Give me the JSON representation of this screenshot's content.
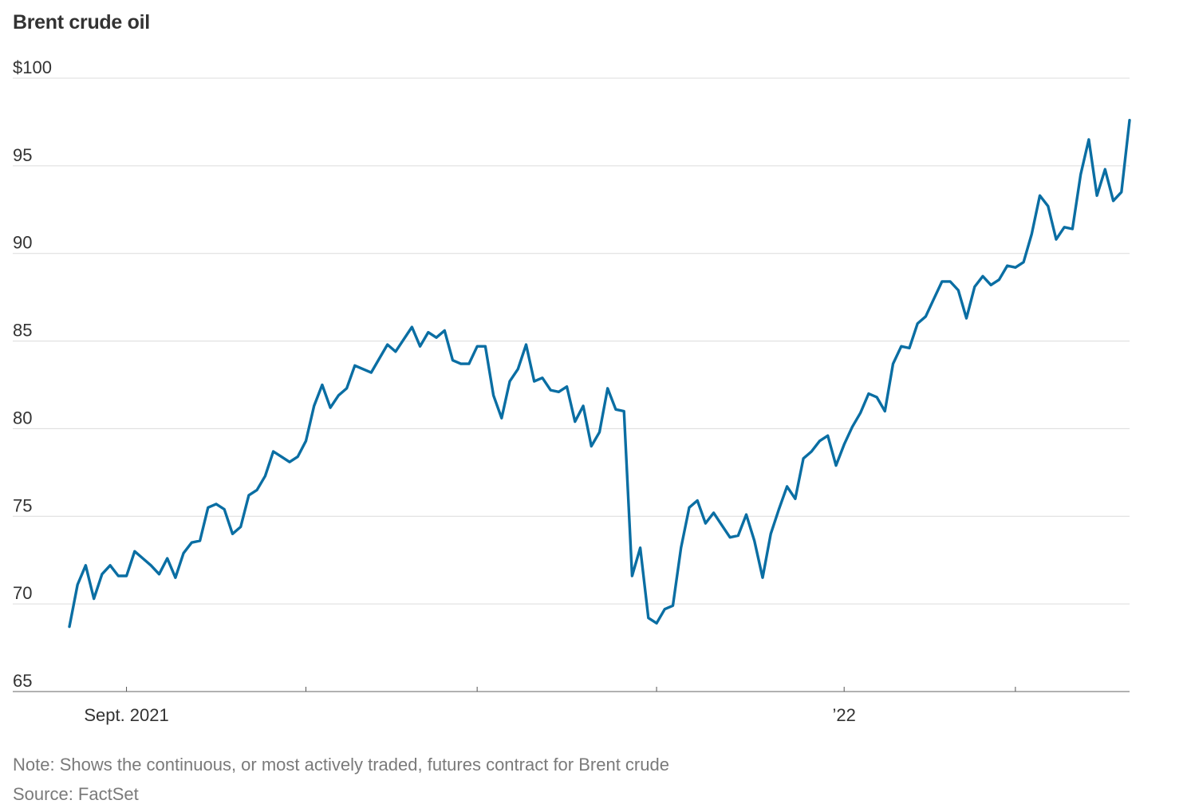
{
  "title": "Brent crude oil",
  "note": "Note: Shows the continuous, or most actively traded, futures contract for Brent crude",
  "source": "Source: FactSet",
  "colors": {
    "series": "#0a6ea3",
    "grid": "#dcdcdc"
  },
  "chart_data": {
    "type": "line",
    "title": "Brent crude oil",
    "xlabel": "",
    "ylabel": "",
    "ylim": [
      65,
      100
    ],
    "grid": true,
    "legend": "none",
    "y_ticks": [
      {
        "value": 100,
        "label": "$100"
      },
      {
        "value": 95,
        "label": "95"
      },
      {
        "value": 90,
        "label": "90"
      },
      {
        "value": 85,
        "label": "85"
      },
      {
        "value": 80,
        "label": "80"
      },
      {
        "value": 75,
        "label": "75"
      },
      {
        "value": 70,
        "label": "70"
      },
      {
        "value": 65,
        "label": "65"
      }
    ],
    "x_ticks": [
      {
        "index": 7,
        "label": "Sept. 2021"
      },
      {
        "index": 29,
        "label": ""
      },
      {
        "index": 50,
        "label": ""
      },
      {
        "index": 72,
        "label": ""
      },
      {
        "index": 95,
        "label": "’22"
      },
      {
        "index": 116,
        "label": ""
      }
    ],
    "series": [
      {
        "values": [
          68.7,
          71.1,
          72.2,
          70.3,
          71.7,
          72.2,
          71.6,
          71.6,
          73.0,
          72.6,
          72.2,
          71.7,
          72.6,
          71.5,
          72.9,
          73.5,
          73.6,
          75.5,
          75.7,
          75.4,
          74.0,
          74.4,
          76.2,
          76.5,
          77.3,
          78.7,
          78.4,
          78.1,
          78.4,
          79.3,
          81.3,
          82.5,
          81.2,
          81.9,
          82.3,
          83.6,
          83.4,
          83.2,
          84.0,
          84.8,
          84.4,
          85.1,
          85.8,
          84.7,
          85.5,
          85.2,
          85.6,
          83.9,
          83.7,
          83.7,
          84.7,
          84.7,
          81.9,
          80.6,
          82.7,
          83.4,
          84.8,
          82.7,
          82.9,
          82.2,
          82.1,
          82.4,
          80.4,
          81.3,
          79.0,
          79.8,
          82.3,
          81.1,
          81.0,
          71.6,
          73.2,
          69.2,
          68.9,
          69.7,
          69.9,
          73.2,
          75.5,
          75.9,
          74.6,
          75.2,
          74.5,
          73.8,
          73.9,
          75.1,
          73.6,
          71.5,
          74.0,
          75.4,
          76.7,
          76.0,
          78.3,
          78.7,
          79.3,
          79.6,
          77.9,
          79.1,
          80.1,
          80.9,
          82.0,
          81.8,
          81.0,
          83.7,
          84.7,
          84.6,
          86.0,
          86.4,
          87.4,
          88.4,
          88.4,
          87.9,
          86.3,
          88.1,
          88.7,
          88.2,
          88.5,
          89.3,
          89.2,
          89.5,
          91.1,
          93.3,
          92.7,
          90.8,
          91.5,
          91.4,
          94.5,
          96.5,
          93.3,
          94.8,
          93.0,
          93.5,
          97.6
        ]
      }
    ]
  }
}
